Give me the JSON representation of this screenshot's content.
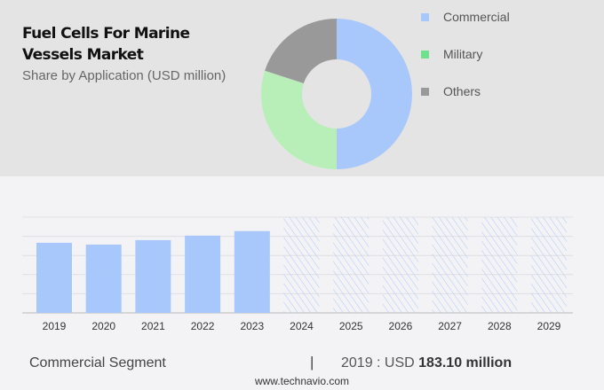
{
  "title": "Fuel Cells For Marine Vessels Market",
  "subtitle": "Share by Application (USD million)",
  "chart_data": [
    {
      "type": "pie",
      "style": "donut",
      "categories": [
        "Commercial",
        "Military",
        "Others"
      ],
      "values": [
        50,
        30,
        20
      ],
      "colors": [
        "#a8c8fc",
        "#b8efb8",
        "#999999"
      ],
      "legend_colors": [
        "#a8c8fc",
        "#6ee08e",
        "#999999"
      ],
      "legend": "right"
    },
    {
      "type": "bar",
      "categories": [
        "2019",
        "2020",
        "2021",
        "2022",
        "2023",
        "2024",
        "2025",
        "2026",
        "2027",
        "2028",
        "2029"
      ],
      "values": [
        183.1,
        178.4,
        190.1,
        201.8,
        213.6,
        null,
        null,
        null,
        null,
        null,
        null
      ],
      "forecast": [
        "2024",
        "2025",
        "2026",
        "2027",
        "2028",
        "2029"
      ],
      "ylim": [
        0,
        250
      ],
      "grid": true,
      "color": "#a8c8fc"
    }
  ],
  "footer": {
    "segment": "Commercial Segment",
    "separator": "|",
    "year_prefix": "2019 : USD ",
    "value": "183.10 million",
    "site": "www.technavio.com"
  }
}
